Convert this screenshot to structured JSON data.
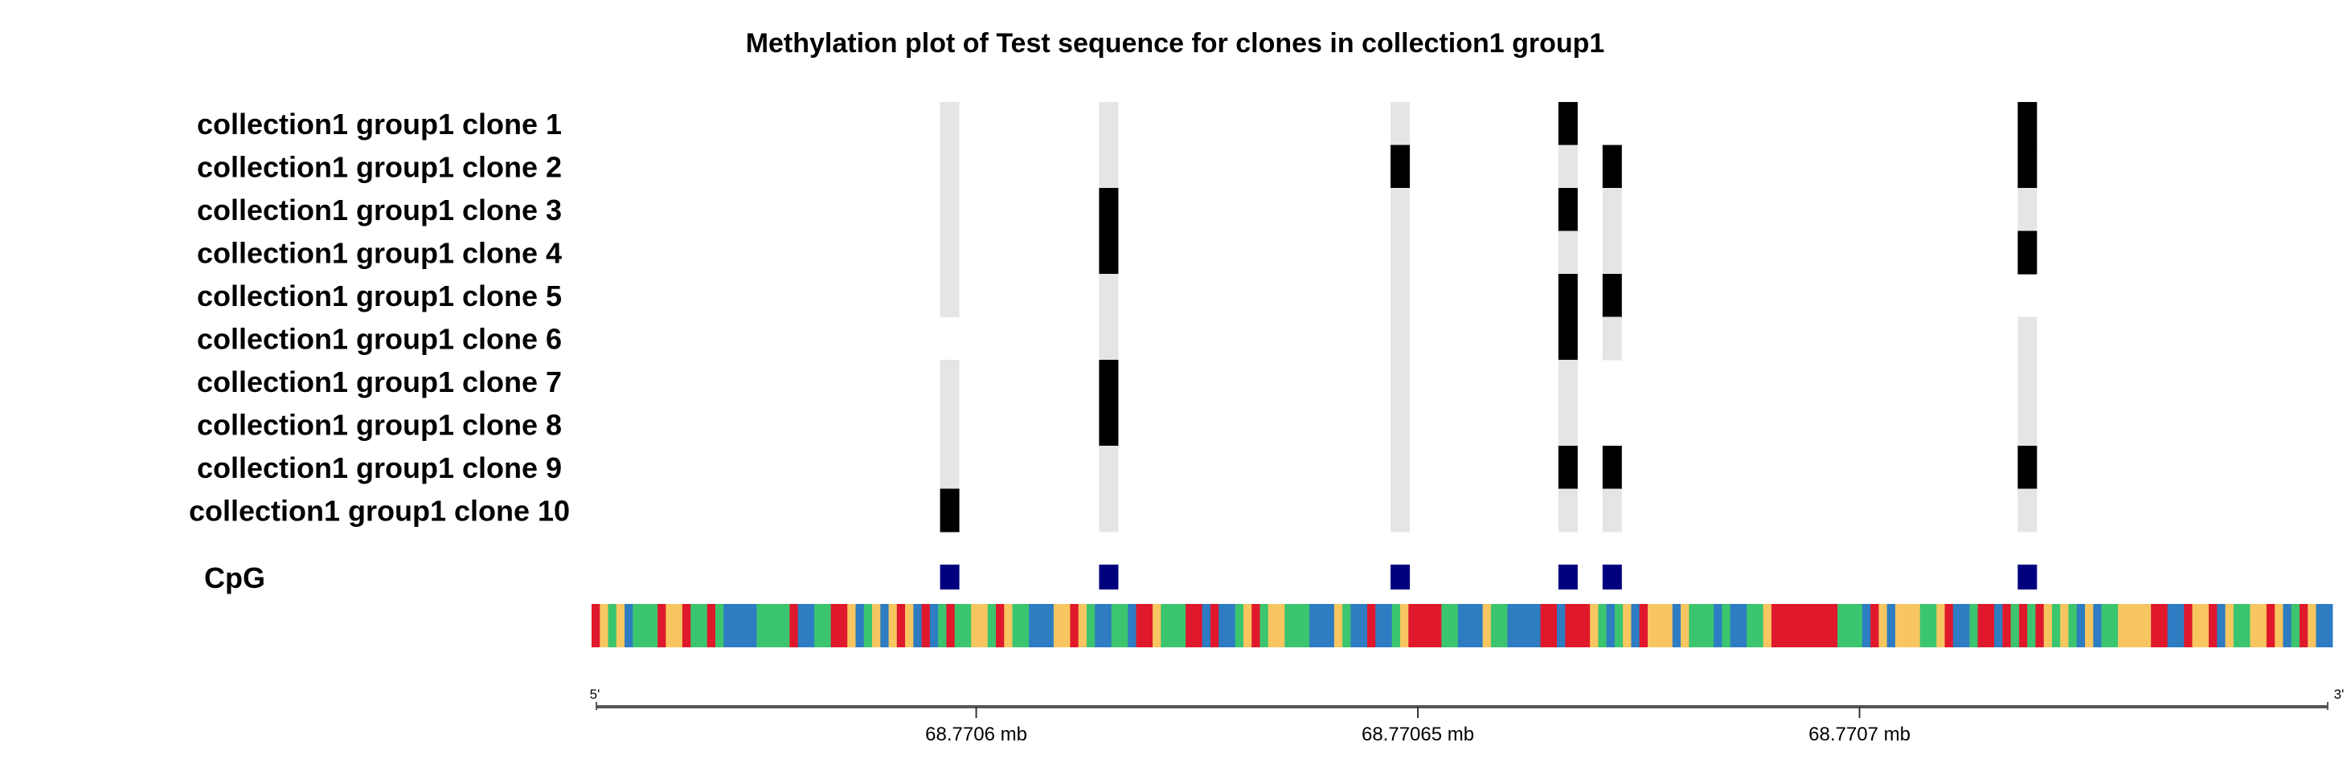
{
  "chart_data": {
    "type": "heatmap",
    "title": "Methylation plot of Test sequence for clones in collection1 group1",
    "clones": [
      "collection1 group1 clone 1",
      "collection1 group1 clone 2",
      "collection1 group1 clone 3",
      "collection1 group1 clone 4",
      "collection1 group1 clone 5",
      "collection1 group1 clone 6",
      "collection1 group1 clone 7",
      "collection1 group1 clone 8",
      "collection1 group1 clone 9",
      "collection1 group1 clone 10"
    ],
    "cpg_track_label": "CpG",
    "cpg_positions_mb": [
      68.770597,
      68.770615,
      68.770648,
      68.770667,
      68.770672,
      68.770719
    ],
    "methylation_legend": {
      "1": "methylated",
      "0": "unmethylated",
      "null": "no data"
    },
    "methylation_matrix": [
      [
        0,
        0,
        0,
        1,
        null,
        1
      ],
      [
        0,
        0,
        1,
        0,
        1,
        1
      ],
      [
        0,
        1,
        0,
        1,
        0,
        0
      ],
      [
        0,
        1,
        0,
        0,
        0,
        1
      ],
      [
        0,
        0,
        0,
        1,
        1,
        null
      ],
      [
        null,
        0,
        0,
        1,
        0,
        0
      ],
      [
        0,
        1,
        0,
        0,
        null,
        0
      ],
      [
        0,
        1,
        0,
        0,
        null,
        0
      ],
      [
        0,
        0,
        0,
        1,
        1,
        1
      ],
      [
        1,
        0,
        0,
        0,
        0,
        0
      ]
    ],
    "sequence": "TGAGCAAATGGTAATACCCCAAAATCCAATTGCAGCGTGCTCATAAGGATGAACCCGGTGACCAACTTGAAATTCTCCAGTAGGAAACCCGACCTCCAGTTTTAACCCGAACCCCTTCTTTGACAGCTGGGCGAAACACCAAGTTTTTTTTAAACTGCGGGAAGTCCATTCTATATGAGACGCAAGGGGTTCCTGGTCGAAGGTGCATGCC",
    "base_colors": {
      "A": "#3cc56f",
      "C": "#2e7cc2",
      "G": "#f7c660",
      "T": "#e0182b"
    },
    "x_axis": {
      "range_mb": [
        68.770557,
        68.770753
      ],
      "ticks": [
        {
          "value": 68.7706,
          "label": "68.7706 mb"
        },
        {
          "value": 68.77065,
          "label": "68.77065 mb"
        },
        {
          "value": 68.7707,
          "label": "68.7707 mb"
        }
      ],
      "five_prime": "5'",
      "three_prime": "3'"
    },
    "colors": {
      "methylated": "#000000",
      "unmethylated": "#e5e5e5",
      "cpg_marker": "#00007f",
      "axis": "#555555"
    }
  }
}
